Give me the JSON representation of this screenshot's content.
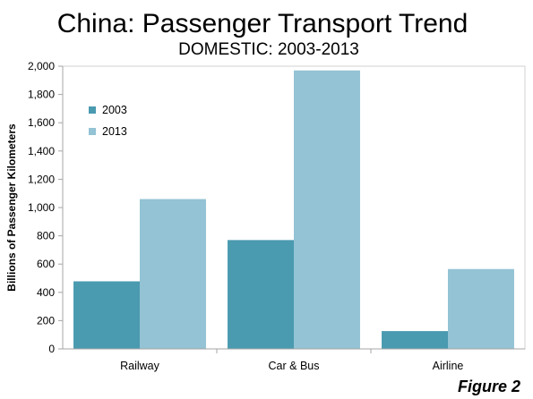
{
  "chart_data": {
    "type": "bar",
    "title": "China: Passenger Transport Trend",
    "subtitle": "DOMESTIC: 2003-2013",
    "xlabel": "",
    "ylabel": "Billions of Passenger Kilometers",
    "categories": [
      "Railway",
      "Car & Bus",
      "Airline"
    ],
    "series": [
      {
        "name": "2003",
        "values": [
          478,
          770,
          126
        ],
        "color": "#4a9ab0"
      },
      {
        "name": "2013",
        "values": [
          1060,
          1970,
          565
        ],
        "color": "#93c3d4"
      }
    ],
    "ylim": [
      0,
      2000
    ],
    "yticks": [
      "0",
      "200",
      "400",
      "600",
      "800",
      "1,000",
      "1,200",
      "1,400",
      "1,600",
      "1,800",
      "2,000"
    ],
    "grid": false,
    "legend_position": "top-left"
  },
  "footer": {
    "figure_label": "Figure 2"
  }
}
